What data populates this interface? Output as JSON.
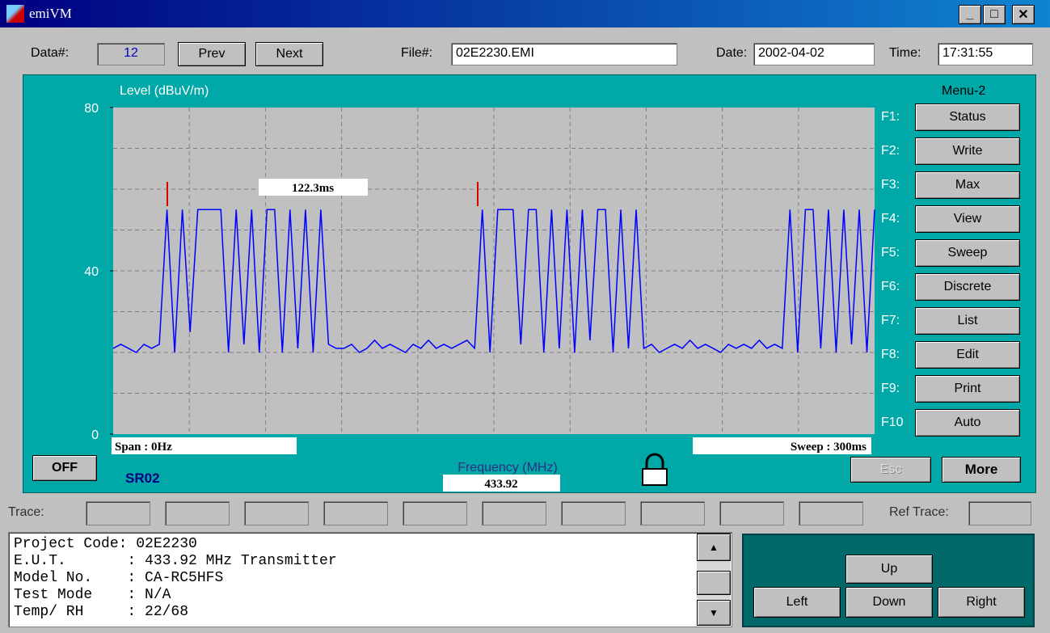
{
  "window": {
    "title": "emiVM"
  },
  "toolbar": {
    "data_label": "Data#:",
    "data_value": "12",
    "prev": "Prev",
    "next": "Next",
    "file_label": "File#:",
    "file_value": "02E2230.EMI",
    "date_label": "Date:",
    "date_value": "2002-04-02",
    "time_label": "Time:",
    "time_value": "17:31:55"
  },
  "chart_data": {
    "type": "line",
    "y_label": "Level (dBuV/m)",
    "ylim": [
      0,
      80
    ],
    "yticks": [
      0,
      40,
      80
    ],
    "grid": true,
    "color": "#0000ff",
    "values": [
      21,
      22,
      21,
      20,
      22,
      21,
      22,
      55,
      20,
      55,
      25,
      55,
      55,
      55,
      55,
      20,
      55,
      22,
      55,
      20,
      55,
      55,
      20,
      55,
      21,
      55,
      20,
      55,
      22,
      21,
      21,
      22,
      20,
      21,
      23,
      21,
      22,
      21,
      20,
      22,
      21,
      23,
      21,
      22,
      21,
      22,
      23,
      21,
      55,
      20,
      55,
      55,
      55,
      22,
      55,
      55,
      20,
      55,
      21,
      55,
      20,
      55,
      23,
      55,
      55,
      20,
      55,
      21,
      55,
      21,
      22,
      20,
      21,
      22,
      21,
      23,
      21,
      22,
      21,
      20,
      22,
      21,
      22,
      21,
      23,
      21,
      22,
      21,
      55,
      20,
      55,
      55,
      21,
      55,
      20,
      55,
      22,
      55,
      20,
      55
    ],
    "annotation": "122.3ms",
    "span": "Span : 0Hz",
    "sweep": "Sweep : 300ms",
    "x_label": "Frequency (MHz)",
    "frequency": "433.92"
  },
  "panel": {
    "off": "OFF",
    "sr": "SR02",
    "esc": "Esc",
    "more": "More",
    "menu_title": "Menu-2",
    "menu": [
      {
        "key": "F1:",
        "label": "Status"
      },
      {
        "key": "F2:",
        "label": "Write"
      },
      {
        "key": "F3:",
        "label": "Max"
      },
      {
        "key": "F4:",
        "label": "View"
      },
      {
        "key": "F5:",
        "label": "Sweep"
      },
      {
        "key": "F6:",
        "label": "Discrete"
      },
      {
        "key": "F7:",
        "label": "List"
      },
      {
        "key": "F8:",
        "label": "Edit"
      },
      {
        "key": "F9:",
        "label": "Print"
      },
      {
        "key": "F10",
        "label": "Auto"
      }
    ]
  },
  "trace_row": {
    "label": "Trace:",
    "ref_label": "Ref Trace:"
  },
  "info": {
    "lines": [
      "Project Code: 02E2230",
      "E.U.T.       : 433.92 MHz Transmitter",
      "Model No.    : CA-RC5HFS",
      "Test Mode    : N/A",
      "Temp/ RH     : 22/68"
    ]
  },
  "nav": {
    "up": "Up",
    "left": "Left",
    "down": "Down",
    "right": "Right"
  }
}
